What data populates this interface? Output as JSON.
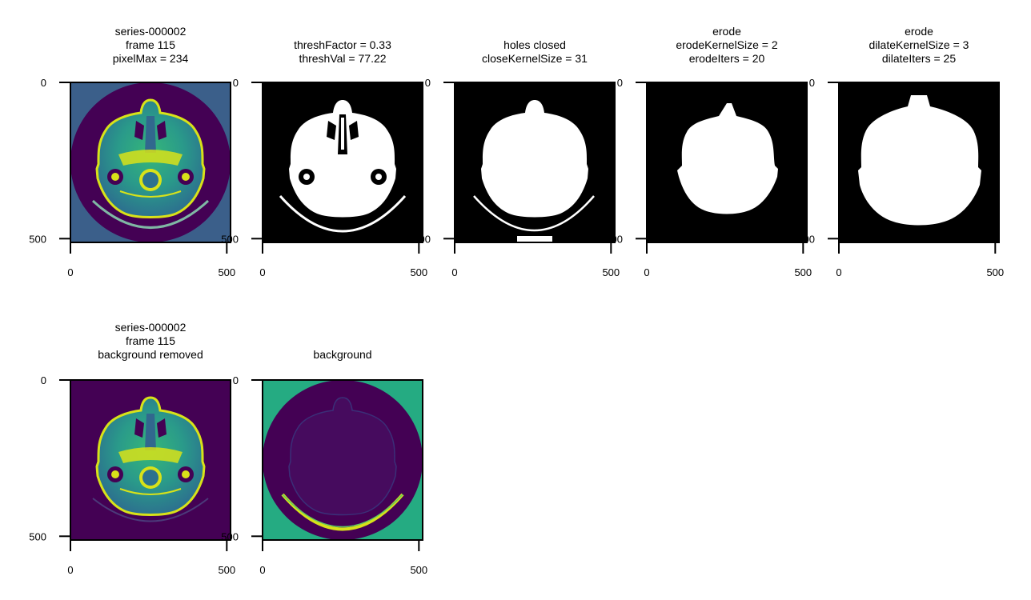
{
  "chart_data": [
    {
      "type": "image",
      "title_lines": [
        "series-000002",
        "frame 115",
        "pixelMax = 234"
      ],
      "x_ticks": [
        "0",
        "500"
      ],
      "y_ticks": [
        "0",
        "500"
      ],
      "xlim": [
        0,
        512
      ],
      "ylim": [
        512,
        0
      ],
      "image_content": "ct-head-full"
    },
    {
      "type": "image",
      "title_lines": [
        "threshFactor = 0.33",
        "threshVal = 77.22"
      ],
      "x_ticks": [
        "0",
        "500"
      ],
      "y_ticks": [
        "0",
        "500"
      ],
      "xlim": [
        0,
        512
      ],
      "ylim": [
        512,
        0
      ],
      "image_content": "threshold-mask"
    },
    {
      "type": "image",
      "title_lines": [
        "holes closed",
        "closeKernelSize = 31"
      ],
      "x_ticks": [
        "0",
        "500"
      ],
      "y_ticks": [
        "0",
        "500"
      ],
      "xlim": [
        0,
        512
      ],
      "ylim": [
        512,
        0
      ],
      "image_content": "closed-mask"
    },
    {
      "type": "image",
      "title_lines": [
        "erode",
        "erodeKernelSize = 2",
        "erodeIters = 20"
      ],
      "x_ticks": [
        "0",
        "500"
      ],
      "y_ticks": [
        "0",
        "500"
      ],
      "xlim": [
        0,
        512
      ],
      "ylim": [
        512,
        0
      ],
      "image_content": "eroded-mask"
    },
    {
      "type": "image",
      "title_lines": [
        "erode",
        "dilateKernelSize = 3",
        "dilateIters = 25"
      ],
      "x_ticks": [
        "0",
        "500"
      ],
      "y_ticks": [
        "0",
        "500"
      ],
      "xlim": [
        0,
        512
      ],
      "ylim": [
        512,
        0
      ],
      "image_content": "dilated-mask"
    },
    {
      "type": "image",
      "title_lines": [
        "series-000002",
        "frame 115",
        "background removed"
      ],
      "x_ticks": [
        "0",
        "500"
      ],
      "y_ticks": [
        "0",
        "500"
      ],
      "xlim": [
        0,
        512
      ],
      "ylim": [
        512,
        0
      ],
      "image_content": "ct-head-background-removed"
    },
    {
      "type": "image",
      "title_lines": [
        "background"
      ],
      "x_ticks": [
        "0",
        "500"
      ],
      "y_ticks": [
        "0",
        "500"
      ],
      "xlim": [
        0,
        512
      ],
      "ylim": [
        512,
        0
      ],
      "image_content": "background-only"
    }
  ],
  "colors": {
    "viridis_dark": "#440154",
    "viridis_teal": "#3e8a8c",
    "viridis_green": "#25ab82",
    "viridis_yellow": "#d8e219",
    "mask_fg": "#ffffff",
    "mask_bg": "#000000"
  },
  "colormap": "viridis"
}
